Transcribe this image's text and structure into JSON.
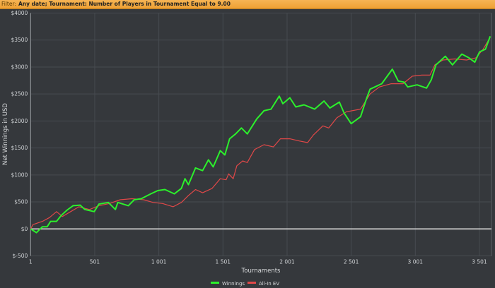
{
  "filter": {
    "label": "Filter:",
    "value": "Any date; Tournament: Number of Players in Tournament Equal to 9.00"
  },
  "chart_data": {
    "type": "line",
    "xlabel": "Tournaments",
    "ylabel": "Net Winnings in USD",
    "xlim": [
      1,
      3595
    ],
    "ylim": [
      -500,
      4000
    ],
    "grid": true,
    "legend_placement": "bottom",
    "x_ticks": [
      {
        "v": 1,
        "label": "1"
      },
      {
        "v": 501,
        "label": "501"
      },
      {
        "v": 1001,
        "label": "1 001"
      },
      {
        "v": 1501,
        "label": "1 501"
      },
      {
        "v": 2001,
        "label": "2 001"
      },
      {
        "v": 2501,
        "label": "2 501"
      },
      {
        "v": 3001,
        "label": "3 001"
      },
      {
        "v": 3501,
        "label": "3 501"
      }
    ],
    "y_ticks": [
      {
        "v": -500,
        "label": "$-500"
      },
      {
        "v": 0,
        "label": "$0"
      },
      {
        "v": 500,
        "label": "$500"
      },
      {
        "v": 1000,
        "label": "$1000"
      },
      {
        "v": 1500,
        "label": "$1500"
      },
      {
        "v": 2000,
        "label": "$2000"
      },
      {
        "v": 2500,
        "label": "$2500"
      },
      {
        "v": 3000,
        "label": "$3000"
      },
      {
        "v": 3500,
        "label": "$3500"
      },
      {
        "v": 4000,
        "label": "$4000"
      }
    ],
    "series": [
      {
        "name": "Winnings",
        "color": "#2cf02c",
        "x": [
          1,
          47,
          93,
          130,
          157,
          203,
          240,
          286,
          332,
          387,
          424,
          497,
          534,
          607,
          662,
          681,
          763,
          809,
          864,
          938,
          993,
          1048,
          1122,
          1177,
          1205,
          1232,
          1287,
          1342,
          1388,
          1425,
          1480,
          1516,
          1553,
          1600,
          1645,
          1691,
          1765,
          1821,
          1876,
          1940,
          1968,
          2023,
          2069,
          2133,
          2216,
          2289,
          2335,
          2409,
          2445,
          2501,
          2574,
          2620,
          2648,
          2739,
          2822,
          2868,
          2914,
          2942,
          3015,
          3089,
          3125,
          3162,
          3235,
          3291,
          3364,
          3419,
          3465,
          3502,
          3548,
          3585
        ],
        "y": [
          0,
          -70,
          40,
          40,
          140,
          140,
          250,
          350,
          430,
          440,
          360,
          320,
          460,
          490,
          360,
          490,
          430,
          540,
          560,
          650,
          710,
          730,
          650,
          750,
          930,
          820,
          1130,
          1080,
          1280,
          1150,
          1450,
          1370,
          1670,
          1760,
          1870,
          1760,
          2040,
          2190,
          2220,
          2460,
          2320,
          2430,
          2260,
          2300,
          2220,
          2370,
          2240,
          2350,
          2150,
          1950,
          2080,
          2410,
          2590,
          2690,
          2960,
          2740,
          2720,
          2630,
          2670,
          2610,
          2760,
          3040,
          3200,
          3040,
          3240,
          3170,
          3090,
          3280,
          3330,
          3570
        ]
      },
      {
        "name": "All-In EV",
        "color": "#e04848",
        "x": [
          1,
          19,
          93,
          148,
          203,
          249,
          313,
          378,
          460,
          534,
          616,
          699,
          791,
          883,
          956,
          1030,
          1113,
          1177,
          1232,
          1287,
          1342,
          1416,
          1480,
          1526,
          1545,
          1581,
          1609,
          1655,
          1691,
          1747,
          1821,
          1894,
          1949,
          2023,
          2096,
          2161,
          2206,
          2280,
          2326,
          2390,
          2464,
          2574,
          2648,
          2721,
          2813,
          2905,
          2978,
          3052,
          3116,
          3153,
          3217,
          3309,
          3401,
          3474,
          3530,
          3585
        ],
        "y": [
          0,
          80,
          140,
          210,
          320,
          230,
          320,
          410,
          360,
          430,
          470,
          540,
          560,
          540,
          490,
          470,
          410,
          490,
          620,
          730,
          670,
          750,
          930,
          910,
          1020,
          930,
          1170,
          1260,
          1230,
          1470,
          1560,
          1520,
          1670,
          1670,
          1630,
          1600,
          1740,
          1910,
          1870,
          2060,
          2170,
          2220,
          2500,
          2630,
          2690,
          2690,
          2830,
          2850,
          2850,
          3040,
          3130,
          3150,
          3130,
          3170,
          3330,
          3550
        ]
      }
    ]
  }
}
